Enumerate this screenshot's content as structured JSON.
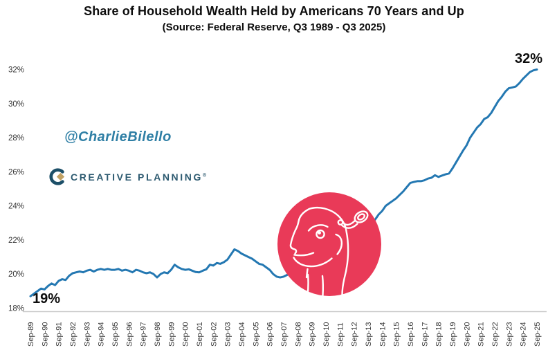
{
  "header": {
    "title": "Share of Household Wealth Held by Americans 70 Years and Up",
    "subtitle": "(Source: Federal Reserve, Q3 1989 - Q3 2025)"
  },
  "watermarks": {
    "handle": "@CharlieBilello",
    "logo_text": "CREATIVE PLANNING",
    "logo_reg_mark": "®"
  },
  "annotations": {
    "start_label": "19%",
    "end_label": "32%"
  },
  "sticker": {
    "description": "red circular sticker with white line-art of a skeptical face with popping monocle, covering 2008-2013 region"
  },
  "colors": {
    "line": "#2478b2",
    "sticker_red": "#e93a58",
    "axis_line": "#c9c9c9",
    "tick_text": "#3a3a3a",
    "handle_text": "#2f7fa5",
    "logo_text": "#2d5a70",
    "logo_mark_teal": "#1c4f68",
    "logo_mark_gold": "#c2a264",
    "title_text": "#0d0d0d"
  },
  "chart_data": {
    "type": "line",
    "title": "Share of Household Wealth Held by Americans 70 Years and Up",
    "source": "Federal Reserve, Q3 1989 - Q3 2025",
    "series_name": "Share of household wealth held by Americans 70 years and up (%)",
    "frequency": "quarterly",
    "x_start": 1989.75,
    "x_step": 0.25,
    "period_start_label": "Q3 1989",
    "period_end_label": "Q3 2025",
    "values": [
      18.7,
      18.85,
      19.0,
      19.15,
      19.1,
      19.3,
      19.45,
      19.35,
      19.6,
      19.7,
      19.65,
      19.9,
      20.05,
      20.1,
      20.15,
      20.1,
      20.2,
      20.25,
      20.15,
      20.25,
      20.3,
      20.25,
      20.3,
      20.25,
      20.25,
      20.3,
      20.2,
      20.25,
      20.2,
      20.1,
      20.25,
      20.2,
      20.1,
      20.05,
      20.1,
      20.0,
      19.8,
      20.0,
      20.1,
      20.05,
      20.25,
      20.55,
      20.4,
      20.3,
      20.25,
      20.28,
      20.2,
      20.12,
      20.1,
      20.2,
      20.28,
      20.55,
      20.5,
      20.65,
      20.6,
      20.7,
      20.85,
      21.15,
      21.45,
      21.35,
      21.2,
      21.1,
      21.0,
      20.9,
      20.75,
      20.6,
      20.55,
      20.4,
      20.25,
      20.0,
      19.85,
      19.8,
      19.85,
      19.95,
      20.1,
      20.3,
      20.55,
      20.8,
      21.0,
      21.15,
      21.3,
      21.4,
      21.5,
      21.6,
      21.7,
      21.8,
      21.9,
      22.0,
      22.1,
      22.2,
      22.3,
      22.4,
      22.5,
      22.6,
      22.7,
      22.8,
      22.9,
      23.0,
      23.2,
      23.5,
      23.7,
      24.0,
      24.15,
      24.3,
      24.45,
      24.65,
      24.85,
      25.1,
      25.35,
      25.4,
      25.45,
      25.45,
      25.5,
      25.6,
      25.65,
      25.8,
      25.7,
      25.78,
      25.85,
      25.9,
      26.2,
      26.55,
      26.9,
      27.25,
      27.55,
      28.0,
      28.3,
      28.6,
      28.8,
      29.1,
      29.2,
      29.45,
      29.8,
      30.15,
      30.4,
      30.7,
      30.9,
      30.95,
      31.0,
      31.2,
      31.45,
      31.65,
      31.85,
      31.95,
      32.0
    ],
    "start_point": {
      "label": "Q3 1989",
      "value": 18.7,
      "annotation": "19%"
    },
    "end_point": {
      "label": "Q3 2025",
      "value": 32.0,
      "annotation": "32%"
    },
    "ylim": [
      18,
      32
    ],
    "y_tick_values": [
      18,
      20,
      22,
      24,
      26,
      28,
      30,
      32
    ],
    "y_tick_labels": [
      "18%",
      "20%",
      "22%",
      "24%",
      "26%",
      "28%",
      "30%",
      "32%"
    ],
    "x_tick_labels": [
      "Sep-89",
      "Sep-90",
      "Sep-91",
      "Sep-92",
      "Sep-93",
      "Sep-94",
      "Sep-95",
      "Sep-96",
      "Sep-97",
      "Sep-98",
      "Sep-99",
      "Sep-00",
      "Sep-01",
      "Sep-02",
      "Sep-03",
      "Sep-04",
      "Sep-05",
      "Sep-06",
      "Sep-07",
      "Sep-08",
      "Sep-09",
      "Sep-10",
      "Sep-11",
      "Sep-12",
      "Sep-13",
      "Sep-14",
      "Sep-15",
      "Sep-16",
      "Sep-17",
      "Sep-18",
      "Sep-19",
      "Sep-20",
      "Sep-21",
      "Sep-22",
      "Sep-23",
      "Sep-24",
      "Sep-25"
    ],
    "grid": false,
    "legend": false
  }
}
